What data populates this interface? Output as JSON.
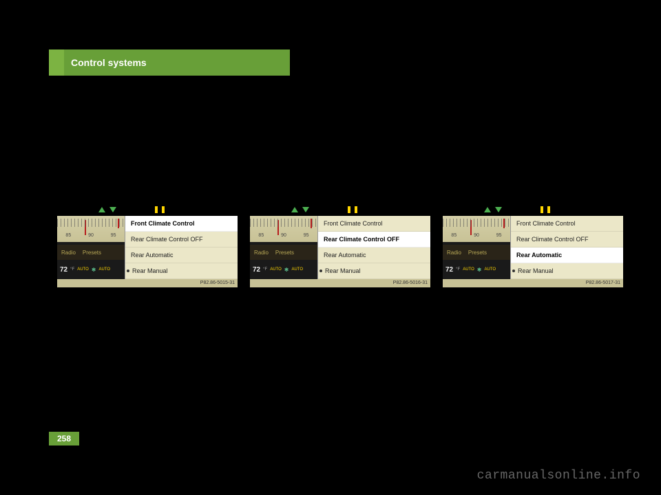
{
  "header": {
    "title": "Control systems"
  },
  "page_number": "258",
  "watermark": "carmanualsonline.info",
  "dial": {
    "numbers": [
      "85",
      "90",
      "95"
    ]
  },
  "radio_row": {
    "label1": "Radio",
    "label2": "Presets"
  },
  "temp_row": {
    "value": "72",
    "unit": "°F",
    "auto": "AUTO"
  },
  "menu_labels": {
    "front": "Front Climate Control",
    "rear_off": "Rear Climate Control OFF",
    "rear_auto": "Rear Automatic",
    "rear_manual": "Rear Manual"
  },
  "screenshots": [
    {
      "ref": "P82.86-5015-31",
      "selected": 0,
      "dot_index": 3
    },
    {
      "ref": "P82.86-5016-31",
      "selected": 1,
      "dot_index": 3
    },
    {
      "ref": "P82.86-5017-31",
      "selected": 2,
      "dot_index": 3
    }
  ],
  "colors": {
    "header_accent": "#7cb342",
    "header_main": "#689f38",
    "menu_bg": "#ebe7c8",
    "dial_bg": "#d4cfa8",
    "arrow_green": "#4caf50",
    "arrow_yellow": "#ffd600"
  }
}
